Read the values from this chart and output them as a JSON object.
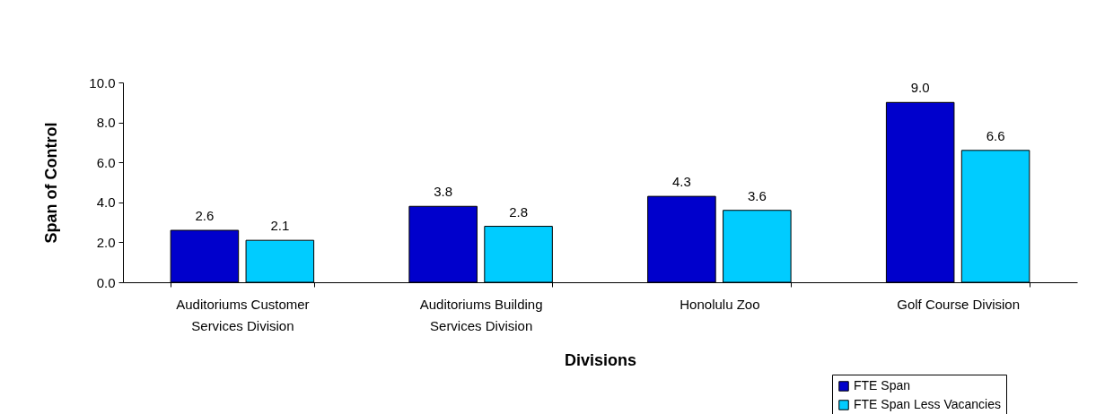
{
  "chart_data": {
    "type": "bar",
    "categories": [
      "Auditoriums Customer Services Division",
      "Auditoriums Building Services Division",
      "Honolulu Zoo",
      "Golf Course Division"
    ],
    "xlabel": "Divisions",
    "ylabel": "Span of Control",
    "ylim": [
      0,
      10
    ],
    "yticks": [
      {
        "value": 0,
        "label": "0.0"
      },
      {
        "value": 2,
        "label": "2.0"
      },
      {
        "value": 4,
        "label": "4.0"
      },
      {
        "value": 6,
        "label": "6.0"
      },
      {
        "value": 8,
        "label": "8.0"
      },
      {
        "value": 10,
        "label": "10.0"
      }
    ],
    "grid": false,
    "legend": "bottom right",
    "series": [
      {
        "name": "FTE Span",
        "color": "#0000cc",
        "values": [
          2.6,
          3.8,
          4.3,
          9.0
        ],
        "value_labels": [
          "2.6",
          "3.8",
          "4.3",
          "9.0"
        ]
      },
      {
        "name": "FTE Span Less Vacancies",
        "color": "#00ccff",
        "values": [
          2.1,
          2.8,
          3.6,
          6.6
        ],
        "value_labels": [
          "2.1",
          "2.8",
          "3.6",
          "6.6"
        ]
      }
    ]
  }
}
